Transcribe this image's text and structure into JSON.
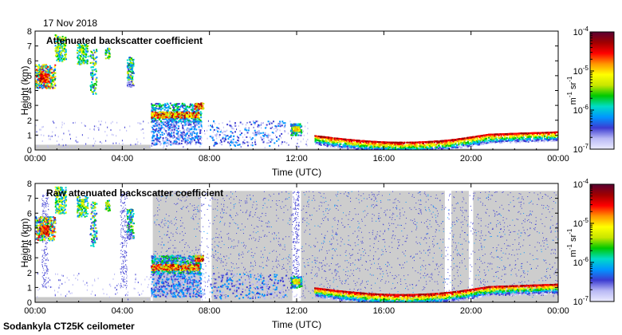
{
  "date_label": "17 Nov 2018",
  "footer_label": "Sodankyla CT25K ceilometer",
  "colors": {
    "background_noise": "#c8c8c8",
    "colormap": [
      "#ebebff",
      "#b9b9f5",
      "#3c3cd2",
      "#0096ff",
      "#00dcc8",
      "#00c800",
      "#c8e600",
      "#ffff00",
      "#ff9600",
      "#ff0000",
      "#a00000",
      "#5a0032"
    ]
  },
  "chart_data": [
    {
      "type": "heatmap",
      "title": "Attenuated backscatter coefficient",
      "xlabel": "Time (UTC)",
      "ylabel": "Height (km)",
      "xlim": [
        0,
        24
      ],
      "ylim": [
        0,
        8
      ],
      "x_ticks": [
        "00:00",
        "04:00",
        "08:00",
        "12:00",
        "16:00",
        "20:00",
        "00:00"
      ],
      "y_ticks": [
        "0",
        "1",
        "2",
        "3",
        "4",
        "5",
        "6",
        "7",
        "8"
      ],
      "colorbar": {
        "scale": "log",
        "unit_label": [
          "m",
          "-1",
          " sr",
          "-1"
        ],
        "ticks": [
          {
            "base": "10",
            "exp": "-4"
          },
          {
            "base": "10",
            "exp": "-5"
          },
          {
            "base": "10",
            "exp": "-6"
          },
          {
            "base": "10",
            "exp": "-7"
          }
        ]
      },
      "show_background_noise": false
    },
    {
      "type": "heatmap",
      "title": "Raw attenuated backscatter coefficient",
      "xlabel": "Time (UTC)",
      "ylabel": "Height (km)",
      "xlim": [
        0,
        24
      ],
      "ylim": [
        0,
        8
      ],
      "x_ticks": [
        "00:00",
        "04:00",
        "08:00",
        "12:00",
        "16:00",
        "20:00",
        "00:00"
      ],
      "y_ticks": [
        "0",
        "1",
        "2",
        "3",
        "4",
        "5",
        "6",
        "7",
        "8"
      ],
      "colorbar": {
        "scale": "log",
        "unit_label": [
          "m",
          "-1",
          " sr",
          "-1"
        ],
        "ticks": [
          {
            "base": "10",
            "exp": "-4"
          },
          {
            "base": "10",
            "exp": "-5"
          },
          {
            "base": "10",
            "exp": "-6"
          },
          {
            "base": "10",
            "exp": "-7"
          }
        ]
      },
      "show_background_noise": true
    }
  ]
}
